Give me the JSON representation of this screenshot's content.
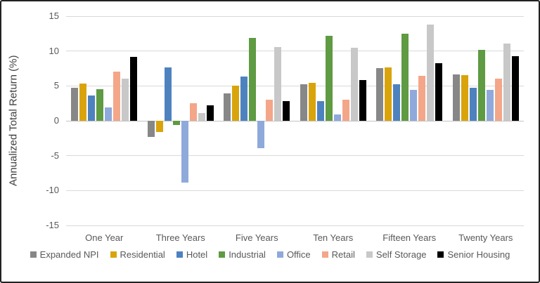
{
  "chart_data": {
    "type": "bar",
    "title": "",
    "xlabel": "",
    "ylabel": "Annualized Total Return (%)",
    "ylim": [
      -15,
      15
    ],
    "yticks": [
      15,
      10,
      5,
      0,
      -5,
      -10,
      -15
    ],
    "grid": true,
    "legend_position": "bottom",
    "categories": [
      "One Year",
      "Three Years",
      "Five Years",
      "Ten Years",
      "Fifteen Years",
      "Twenty Years"
    ],
    "series": [
      {
        "name": "Expanded NPI",
        "color": "#878787",
        "values": [
          4.7,
          -2.3,
          3.9,
          5.2,
          7.6,
          6.6
        ]
      },
      {
        "name": "Residential",
        "color": "#D9A40B",
        "values": [
          5.3,
          -1.6,
          5.0,
          5.4,
          7.7,
          6.5
        ]
      },
      {
        "name": "Hotel",
        "color": "#4E82BE",
        "values": [
          3.6,
          7.7,
          6.3,
          2.8,
          5.2,
          4.7
        ]
      },
      {
        "name": "Industrial",
        "color": "#5E9B42",
        "values": [
          4.5,
          -0.6,
          11.9,
          12.2,
          12.5,
          10.2
        ]
      },
      {
        "name": "Office",
        "color": "#8FA9DB",
        "values": [
          1.9,
          -8.9,
          -3.9,
          0.9,
          4.4,
          4.4
        ]
      },
      {
        "name": "Retail",
        "color": "#F4A689",
        "values": [
          7.0,
          2.5,
          3.0,
          3.0,
          6.4,
          6.0
        ]
      },
      {
        "name": "Self Storage",
        "color": "#C8C8C8",
        "values": [
          6.0,
          1.1,
          10.6,
          10.5,
          13.8,
          11.1
        ]
      },
      {
        "name": "Senior Housing",
        "color": "#000000",
        "values": [
          9.2,
          2.2,
          2.8,
          5.8,
          8.3,
          9.3
        ]
      }
    ]
  },
  "style": {
    "grid_color": "#D9D9D9",
    "axis_text_color": "#595959",
    "border_color": "#222222",
    "background": "#FFFFFF"
  }
}
